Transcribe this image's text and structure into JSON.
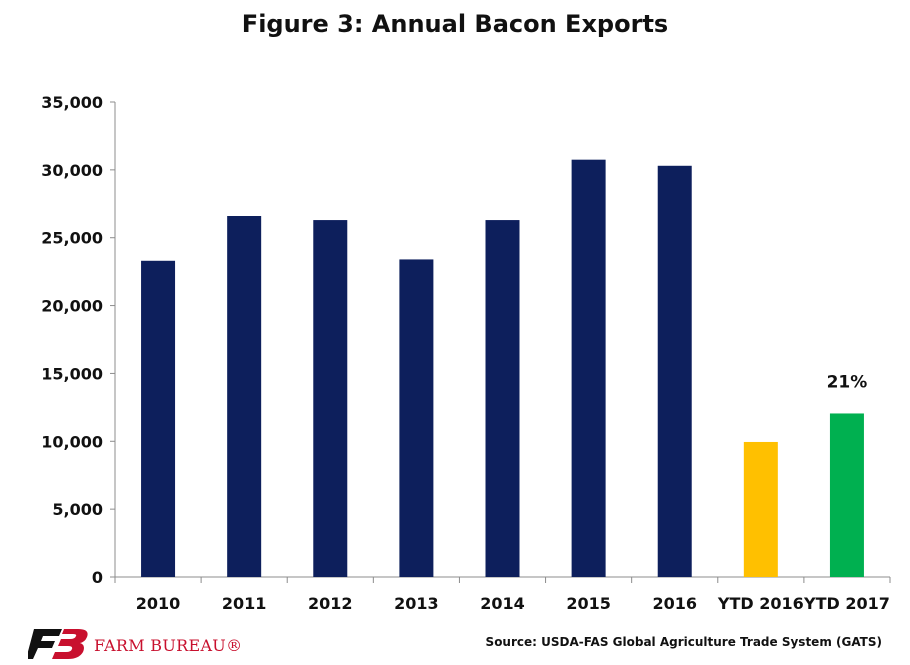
{
  "chart_data": {
    "type": "bar",
    "title": "Figure 3: Annual Bacon Exports",
    "xlabel": "",
    "ylabel": "",
    "categories": [
      "2010",
      "2011",
      "2012",
      "2013",
      "2014",
      "2015",
      "2016",
      "YTD 2016",
      "YTD 2017"
    ],
    "values": [
      23300,
      26600,
      26300,
      23400,
      26300,
      30750,
      30300,
      9950,
      12050
    ],
    "bar_colors": [
      "#0d1f5c",
      "#0d1f5c",
      "#0d1f5c",
      "#0d1f5c",
      "#0d1f5c",
      "#0d1f5c",
      "#0d1f5c",
      "#ffc000",
      "#00b050"
    ],
    "ylim": [
      0,
      35000
    ],
    "yticks": [
      0,
      5000,
      10000,
      15000,
      20000,
      25000,
      30000,
      35000
    ],
    "ytick_labels": [
      "0",
      "5,000",
      "10,000",
      "15,000",
      "20,000",
      "25,000",
      "30,000",
      "35,000"
    ],
    "grid": false,
    "annotations": [
      {
        "category": "YTD 2017",
        "text": "21%"
      }
    ]
  },
  "footer": {
    "logo_text": "FARM BUREAU®",
    "source": "Source: USDA-FAS Global Agriculture Trade System (GATS)"
  }
}
